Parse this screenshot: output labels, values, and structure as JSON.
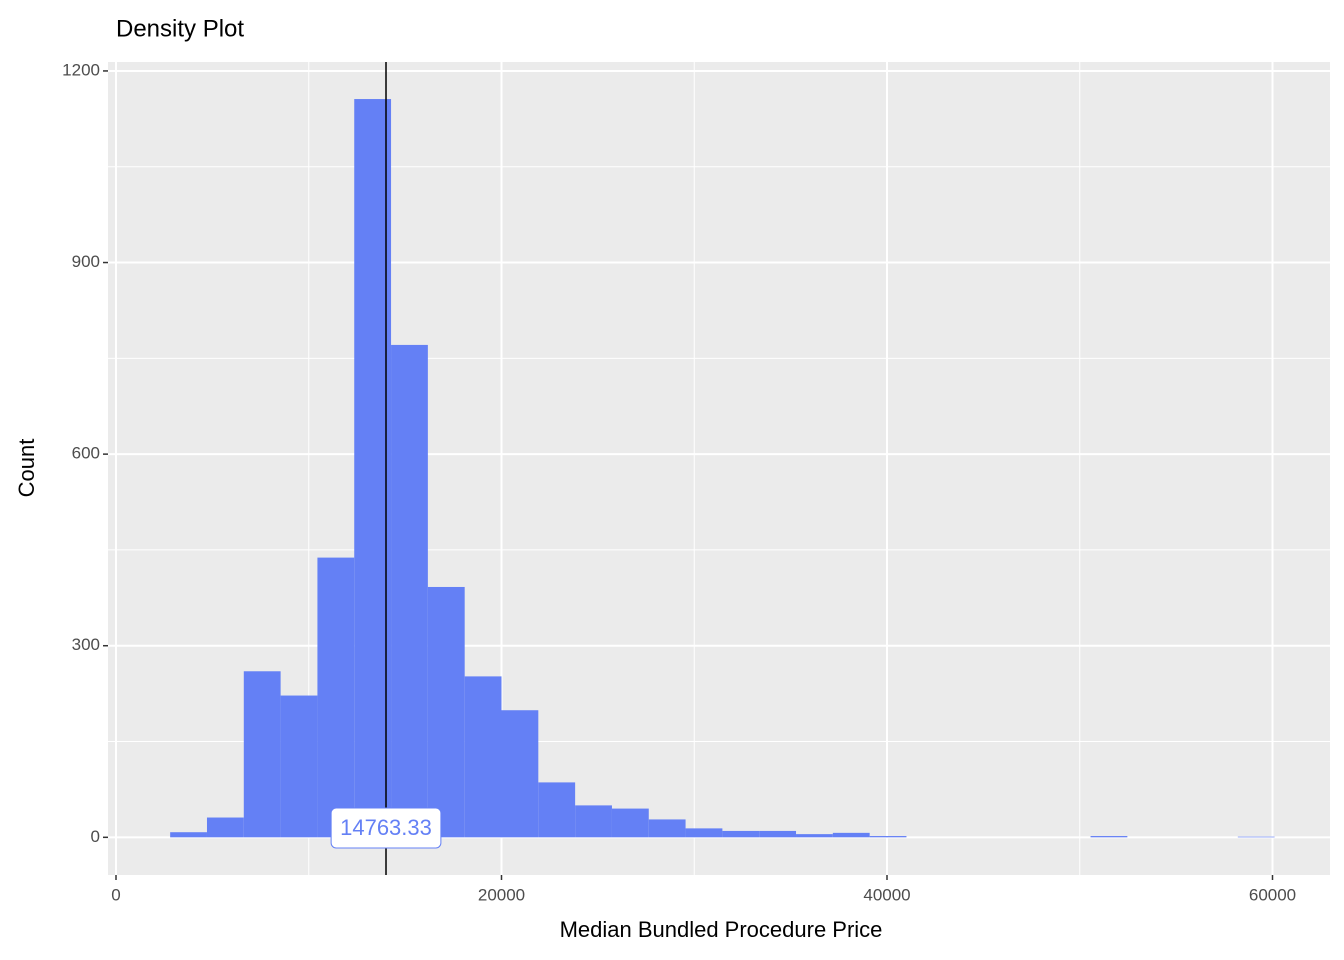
{
  "chart_data": {
    "type": "histogram",
    "title": "Density Plot",
    "x_label": "Median Bundled Procedure Price",
    "y_label": "Count",
    "bins": [
      2810,
      4720,
      6630,
      8540,
      10450,
      12360,
      14270,
      16180,
      18090,
      20000,
      21910,
      23820,
      25730,
      27640,
      29550,
      31460,
      33370,
      35280,
      37190,
      39100,
      41010,
      42920,
      44830,
      46740,
      48650,
      50560,
      52470,
      54380,
      56290,
      58200,
      60110
    ],
    "counts": [
      8,
      31,
      260,
      222,
      438,
      1156,
      771,
      392,
      252,
      199,
      86,
      50,
      45,
      28,
      14,
      10,
      10,
      5,
      7,
      2,
      0,
      0,
      0,
      0,
      0,
      2,
      0,
      0,
      0,
      1
    ],
    "color": "#6480f5",
    "vline": 14008,
    "annotation": "14763.33",
    "xlim": [
      -415,
      62983
    ],
    "ylim": [
      -59,
      1214
    ],
    "xticks": [
      0,
      20000,
      40000,
      60000
    ],
    "yticks": [
      0,
      300,
      600,
      900,
      1200
    ],
    "grid": true
  }
}
